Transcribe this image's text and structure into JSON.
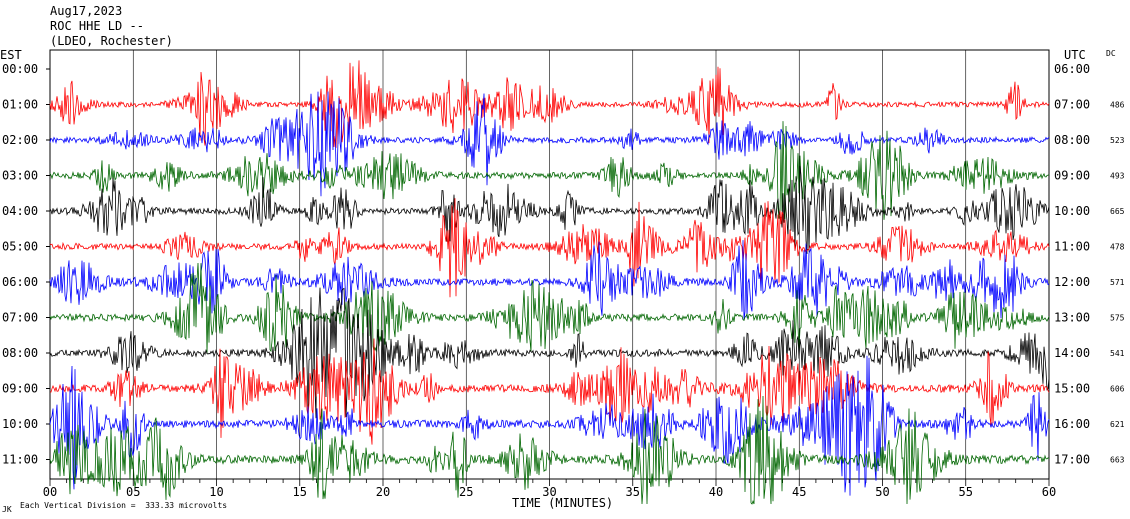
{
  "header": {
    "date": "Aug17,2023",
    "station": "ROC HHE LD --",
    "network": "(LDEO, Rochester)"
  },
  "chart_data": {
    "type": "line",
    "title": "",
    "left_axis_label": "EST",
    "right_axis_label": "UTC",
    "dc_label": "DC",
    "xlabel": "TIME (MINUTES)",
    "xlim": [
      0,
      60
    ],
    "x_ticks": [
      "00",
      "05",
      "10",
      "15",
      "20",
      "25",
      "30",
      "35",
      "40",
      "45",
      "50",
      "55",
      "60"
    ],
    "footer_note": "Each Vertical Division =  333.33 microvolts",
    "corner_mark": "JK",
    "rows": [
      {
        "est": "00:00",
        "utc": "06:00",
        "dc": "",
        "color": "",
        "amplitude": 0
      },
      {
        "est": "01:00",
        "utc": "07:00",
        "dc": "486",
        "color": "#ff0000",
        "amplitude": 0.8
      },
      {
        "est": "02:00",
        "utc": "08:00",
        "dc": "523",
        "color": "#0000ff",
        "amplitude": 0.9
      },
      {
        "est": "03:00",
        "utc": "09:00",
        "dc": "493",
        "color": "#006600",
        "amplitude": 1.0
      },
      {
        "est": "04:00",
        "utc": "10:00",
        "dc": "665",
        "color": "#000000",
        "amplitude": 1.0
      },
      {
        "est": "05:00",
        "utc": "11:00",
        "dc": "478",
        "color": "#ff0000",
        "amplitude": 1.0
      },
      {
        "est": "06:00",
        "utc": "12:00",
        "dc": "571",
        "color": "#0000ff",
        "amplitude": 1.1
      },
      {
        "est": "07:00",
        "utc": "13:00",
        "dc": "575",
        "color": "#006600",
        "amplitude": 1.1
      },
      {
        "est": "08:00",
        "utc": "14:00",
        "dc": "541",
        "color": "#000000",
        "amplitude": 1.1
      },
      {
        "est": "09:00",
        "utc": "15:00",
        "dc": "606",
        "color": "#ff0000",
        "amplitude": 1.2
      },
      {
        "est": "10:00",
        "utc": "16:00",
        "dc": "621",
        "color": "#0000ff",
        "amplitude": 1.2
      },
      {
        "est": "11:00",
        "utc": "17:00",
        "dc": "663",
        "color": "#006600",
        "amplitude": 1.3
      }
    ]
  }
}
